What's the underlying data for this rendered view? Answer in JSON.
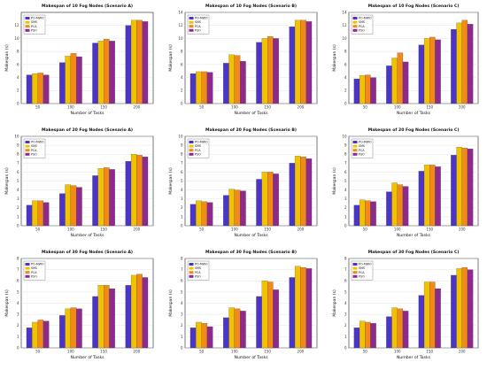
{
  "series_colors": [
    "#4a35c8",
    "#f2c200",
    "#f28a1a",
    "#8e2a8e"
  ],
  "chart_data": [
    {
      "type": "bar",
      "title": "Makespan of 10 Fog Nodes (Scenario A)",
      "xlabel": "Number of Tasks",
      "ylabel": "Makespan (s)",
      "categories": [
        "50",
        "100",
        "150",
        "200"
      ],
      "ylim": [
        0,
        14
      ],
      "yticks": [
        0,
        2,
        4,
        6,
        8,
        10,
        12
      ],
      "legend": "top-left",
      "grid": true,
      "series": [
        {
          "name": "PO-MWO",
          "values": [
            4.4,
            6.3,
            9.3,
            12.0
          ]
        },
        {
          "name": "SMS",
          "values": [
            4.6,
            7.3,
            9.6,
            12.8
          ]
        },
        {
          "name": "PCA",
          "values": [
            4.7,
            7.7,
            9.9,
            12.8
          ]
        },
        {
          "name": "PSO",
          "values": [
            4.4,
            7.2,
            9.6,
            12.6
          ]
        }
      ]
    },
    {
      "type": "bar",
      "title": "Makespan of 10 Fog Nodes (Scenario B)",
      "xlabel": "Number of Tasks",
      "ylabel": "Makespan (s)",
      "categories": [
        "50",
        "100",
        "150",
        "200"
      ],
      "ylim": [
        0,
        14
      ],
      "yticks": [
        0,
        2,
        4,
        6,
        8,
        10,
        12,
        14
      ],
      "legend": "top-left",
      "grid": true,
      "series": [
        {
          "name": "PO-MWO",
          "values": [
            4.6,
            6.2,
            9.4,
            11.8
          ]
        },
        {
          "name": "SMS",
          "values": [
            4.9,
            7.5,
            10.0,
            12.8
          ]
        },
        {
          "name": "PCA",
          "values": [
            4.9,
            7.4,
            10.3,
            12.8
          ]
        },
        {
          "name": "PSO",
          "values": [
            4.8,
            6.5,
            10.0,
            12.6
          ]
        }
      ]
    },
    {
      "type": "bar",
      "title": "Makespan of 10 Fog Nodes (Scenario C)",
      "xlabel": "Number of Tasks",
      "ylabel": "Makespan (s)",
      "categories": [
        "50",
        "100",
        "150",
        "200"
      ],
      "ylim": [
        0,
        14
      ],
      "yticks": [
        0,
        2,
        4,
        6,
        8,
        10,
        12,
        14
      ],
      "legend": "top-left",
      "grid": true,
      "series": [
        {
          "name": "PO-MWO",
          "values": [
            3.8,
            5.8,
            9.0,
            11.4
          ]
        },
        {
          "name": "SMS",
          "values": [
            4.3,
            7.0,
            10.0,
            12.4
          ]
        },
        {
          "name": "PCA",
          "values": [
            4.4,
            7.8,
            10.2,
            12.8
          ]
        },
        {
          "name": "PSO",
          "values": [
            4.0,
            6.4,
            9.8,
            12.2
          ]
        }
      ]
    },
    {
      "type": "bar",
      "title": "Makespan of 20 Fog Nodes (Scenario A)",
      "xlabel": "Number of Tasks",
      "ylabel": "Makespan (s)",
      "categories": [
        "50",
        "100",
        "150",
        "200"
      ],
      "ylim": [
        0,
        10
      ],
      "yticks": [
        0,
        1,
        2,
        3,
        4,
        5,
        6,
        7,
        8,
        9,
        10
      ],
      "legend": "top-left",
      "grid": true,
      "series": [
        {
          "name": "PO-MWO",
          "values": [
            2.3,
            3.6,
            5.6,
            7.2
          ]
        },
        {
          "name": "SMS",
          "values": [
            2.8,
            4.6,
            6.4,
            8.0
          ]
        },
        {
          "name": "PCA",
          "values": [
            2.8,
            4.5,
            6.5,
            7.9
          ]
        },
        {
          "name": "PSO",
          "values": [
            2.6,
            4.3,
            6.3,
            7.7
          ]
        }
      ]
    },
    {
      "type": "bar",
      "title": "Makespan of 20 Fog Nodes (Scenario B)",
      "xlabel": "Number of Tasks",
      "ylabel": "Makespan (s)",
      "categories": [
        "50",
        "100",
        "150",
        "200"
      ],
      "ylim": [
        0,
        10
      ],
      "yticks": [
        0,
        1,
        2,
        3,
        4,
        5,
        6,
        7,
        8,
        9,
        10
      ],
      "legend": "top-left",
      "grid": true,
      "series": [
        {
          "name": "PO-MWO",
          "values": [
            2.4,
            3.4,
            5.2,
            7.0
          ]
        },
        {
          "name": "SMS",
          "values": [
            2.8,
            4.1,
            6.0,
            7.8
          ]
        },
        {
          "name": "PCA",
          "values": [
            2.7,
            4.0,
            6.0,
            7.7
          ]
        },
        {
          "name": "PSO",
          "values": [
            2.6,
            3.9,
            5.8,
            7.5
          ]
        }
      ]
    },
    {
      "type": "bar",
      "title": "Makespan of 20 Fog Nodes (Scenario C)",
      "xlabel": "Number of Tasks",
      "ylabel": "Makespan (s)",
      "categories": [
        "50",
        "100",
        "150",
        "200"
      ],
      "ylim": [
        0,
        10
      ],
      "yticks": [
        0,
        1,
        2,
        3,
        4,
        5,
        6,
        7,
        8,
        9,
        10
      ],
      "legend": "top-left",
      "grid": true,
      "series": [
        {
          "name": "PO-MWO",
          "values": [
            2.3,
            3.8,
            6.1,
            7.9
          ]
        },
        {
          "name": "SMS",
          "values": [
            2.9,
            4.8,
            6.8,
            8.8
          ]
        },
        {
          "name": "PCA",
          "values": [
            2.8,
            4.6,
            6.8,
            8.7
          ]
        },
        {
          "name": "PSO",
          "values": [
            2.7,
            4.4,
            6.6,
            8.6
          ]
        }
      ]
    },
    {
      "type": "bar",
      "title": "Makespan of 30 Fog Nodes (Scenario A)",
      "xlabel": "Number of Tasks",
      "ylabel": "Makespan (s)",
      "categories": [
        "50",
        "100",
        "150",
        "200"
      ],
      "ylim": [
        0,
        8
      ],
      "yticks": [
        0,
        1,
        2,
        3,
        4,
        5,
        6,
        7,
        8
      ],
      "legend": "top-left",
      "grid": true,
      "series": [
        {
          "name": "PO-MWO",
          "values": [
            1.8,
            2.9,
            4.6,
            5.6
          ]
        },
        {
          "name": "SMS",
          "values": [
            2.3,
            3.5,
            5.6,
            6.5
          ]
        },
        {
          "name": "PCA",
          "values": [
            2.5,
            3.6,
            5.6,
            6.6
          ]
        },
        {
          "name": "PSO",
          "values": [
            2.4,
            3.5,
            5.3,
            6.3
          ]
        }
      ]
    },
    {
      "type": "bar",
      "title": "Makespan of 30 Fog Nodes (Scenario B)",
      "xlabel": "Number of Tasks",
      "ylabel": "Makespan (s)",
      "categories": [
        "50",
        "100",
        "150",
        "200"
      ],
      "ylim": [
        0,
        8
      ],
      "yticks": [
        0,
        1,
        2,
        3,
        4,
        5,
        6,
        7,
        8
      ],
      "legend": "top-left",
      "grid": true,
      "series": [
        {
          "name": "PO-MWO",
          "values": [
            1.8,
            2.7,
            4.6,
            6.3
          ]
        },
        {
          "name": "SMS",
          "values": [
            2.3,
            3.6,
            6.0,
            7.3
          ]
        },
        {
          "name": "PCA",
          "values": [
            2.2,
            3.5,
            5.9,
            7.2
          ]
        },
        {
          "name": "PSO",
          "values": [
            1.9,
            3.3,
            5.2,
            7.1
          ]
        }
      ]
    },
    {
      "type": "bar",
      "title": "Makespan of 30 Fog Nodes (Scenario C)",
      "xlabel": "Number of Tasks",
      "ylabel": "Makespan (s)",
      "categories": [
        "50",
        "100",
        "150",
        "200"
      ],
      "ylim": [
        0,
        8
      ],
      "yticks": [
        0,
        1,
        2,
        3,
        4,
        5,
        6,
        7,
        8
      ],
      "legend": "top-left",
      "grid": true,
      "series": [
        {
          "name": "PO-MWO",
          "values": [
            1.8,
            2.8,
            4.7,
            6.5
          ]
        },
        {
          "name": "SMS",
          "values": [
            2.4,
            3.6,
            5.9,
            7.1
          ]
        },
        {
          "name": "PCA",
          "values": [
            2.3,
            3.5,
            5.9,
            7.2
          ]
        },
        {
          "name": "PSO",
          "values": [
            2.2,
            3.3,
            5.3,
            7.0
          ]
        }
      ]
    }
  ]
}
